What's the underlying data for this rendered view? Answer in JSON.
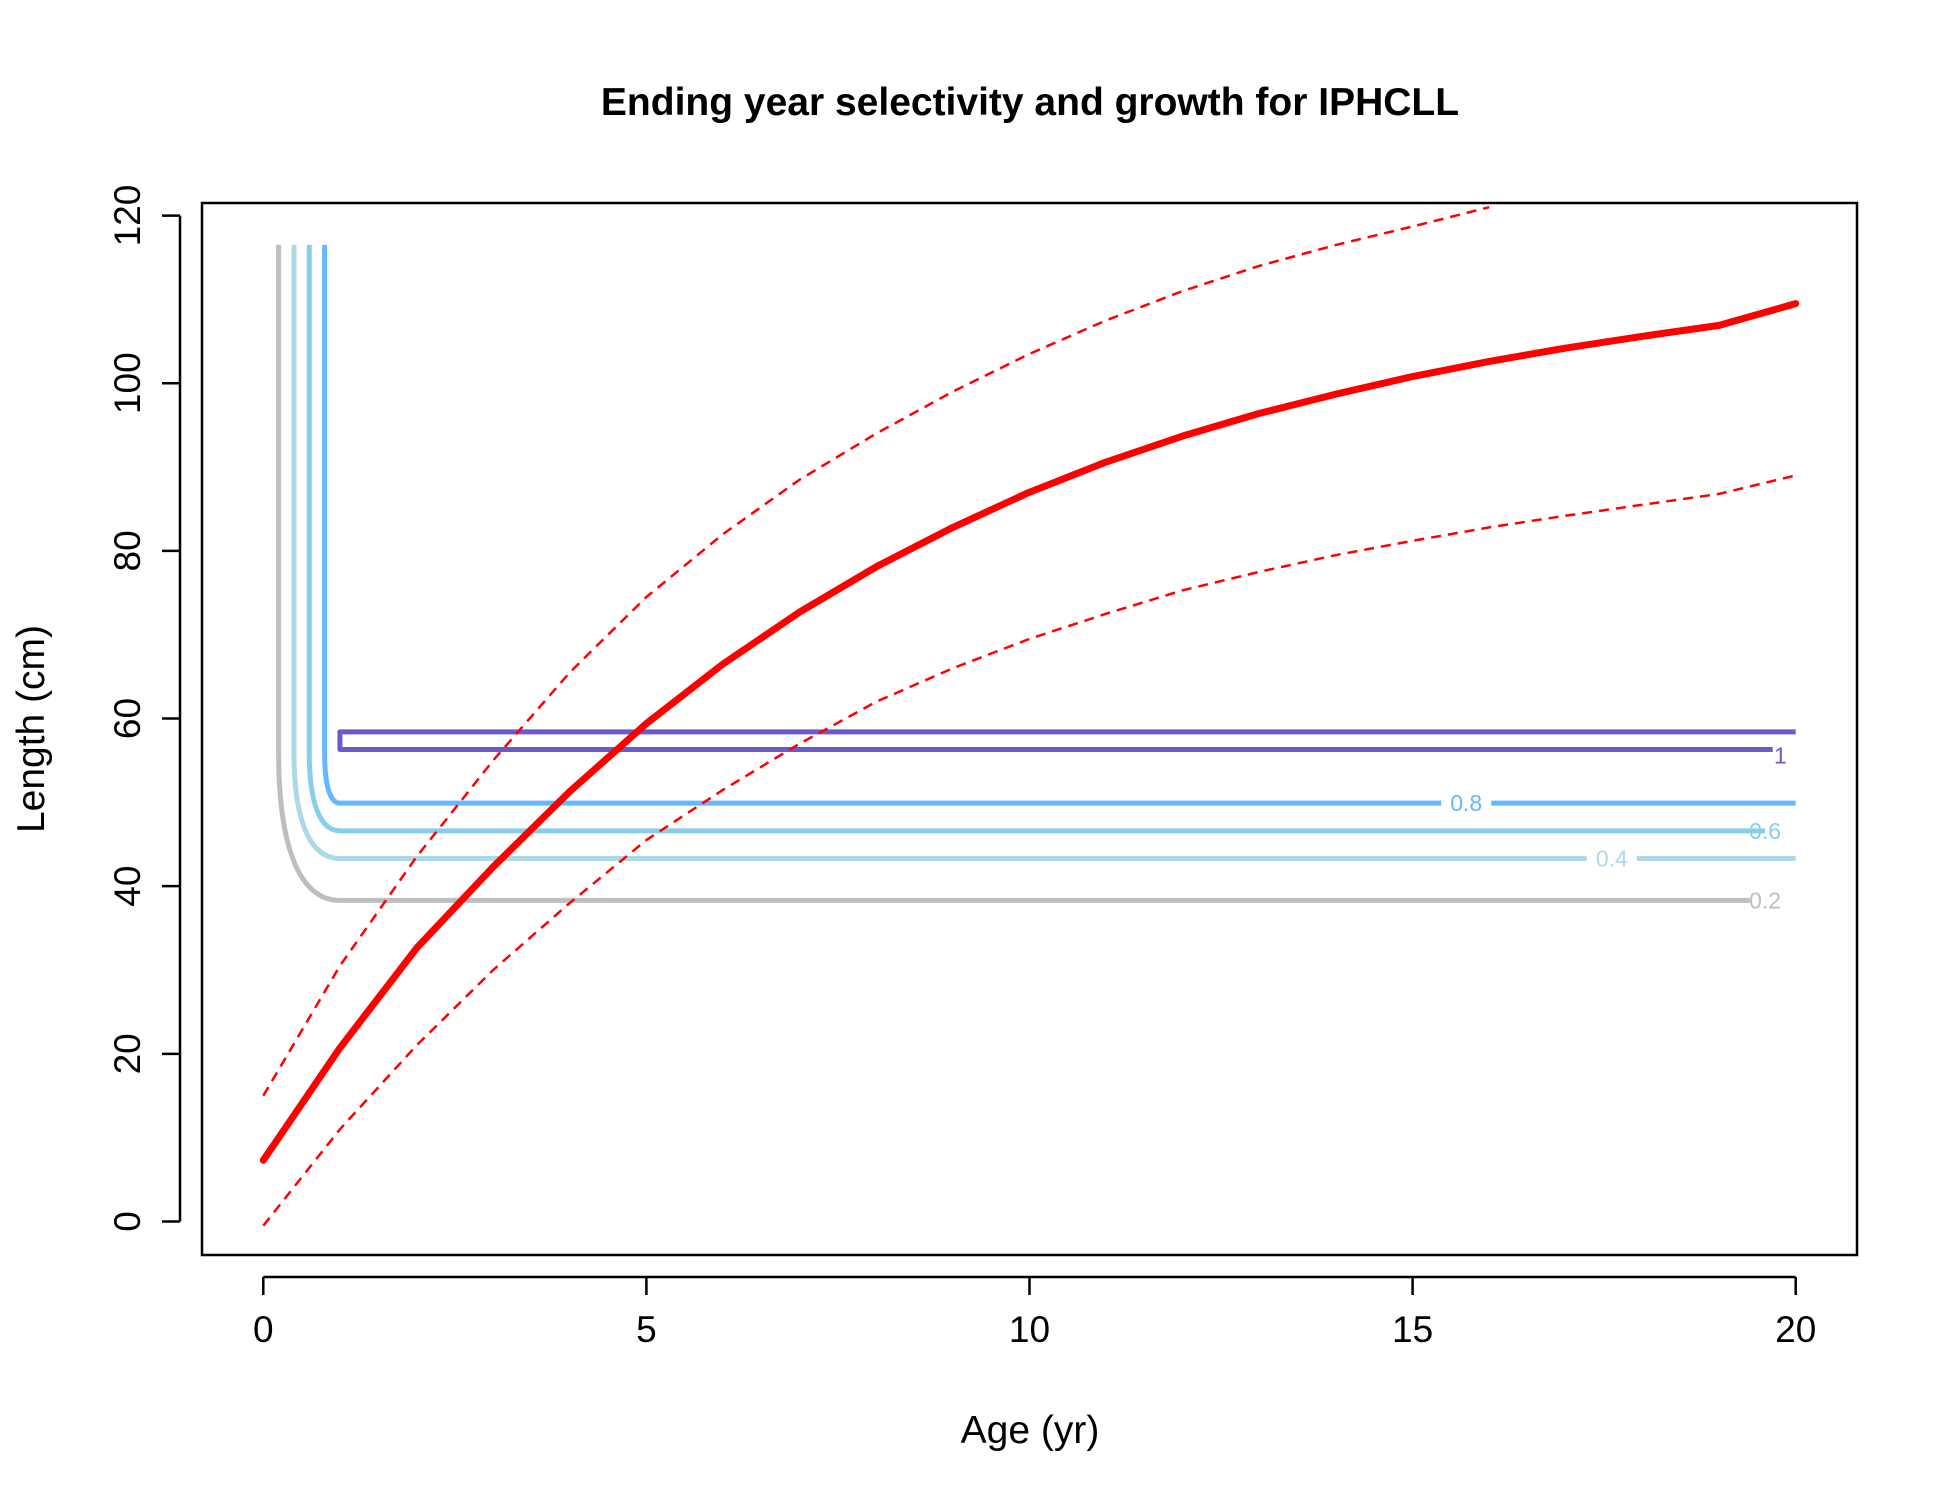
{
  "chart_data": {
    "type": "line",
    "title": "Ending year selectivity and growth for IPHCLL",
    "xlabel": "Age (yr)",
    "ylabel": "Length (cm)",
    "xlim": [
      -0.8,
      20.8
    ],
    "ylim": [
      -4,
      121.5
    ],
    "xticks": [
      0,
      5,
      10,
      15,
      20
    ],
    "yticks": [
      0,
      20,
      40,
      60,
      80,
      100,
      120
    ],
    "growth": {
      "color": "#ff0000",
      "mean": {
        "x": [
          0,
          1,
          2,
          3,
          4,
          5,
          6,
          7,
          8,
          9,
          10,
          11,
          12,
          13,
          14,
          15,
          16,
          17,
          18,
          19,
          20
        ],
        "y": [
          7.3,
          20.7,
          32.6,
          42.3,
          51.3,
          59.4,
          66.5,
          72.7,
          78.1,
          82.8,
          87.0,
          90.6,
          93.7,
          96.4,
          98.7,
          100.8,
          102.6,
          104.2,
          105.6,
          106.9,
          109.5
        ]
      },
      "upper": {
        "x": [
          0,
          1,
          2,
          3,
          4,
          5,
          6,
          7,
          8,
          9,
          10,
          11,
          12,
          13,
          14,
          15,
          16
        ],
        "y": [
          15,
          30.5,
          43.5,
          55,
          65.5,
          74.5,
          82,
          88.5,
          94,
          99,
          103.5,
          107.5,
          111,
          114,
          116.5,
          118.7,
          121
        ]
      },
      "lower": {
        "x": [
          0,
          1,
          2,
          3,
          4,
          5,
          6,
          7,
          8,
          9,
          10,
          11,
          12,
          13,
          14,
          15,
          16,
          17,
          18,
          19,
          20
        ],
        "y": [
          -0.5,
          11,
          21,
          30,
          38,
          45.5,
          51.5,
          57,
          62,
          66,
          69.5,
          72.5,
          75.3,
          77.5,
          79.5,
          81.2,
          82.8,
          84.2,
          85.5,
          86.8,
          89
        ]
      }
    },
    "selectivity_contours": [
      {
        "level": 0.2,
        "label": "0.2",
        "color": "#bebebe",
        "x_start": 0.2,
        "y_top": 116.5,
        "y_bend": 56,
        "y_level": 38.3,
        "x_bend": 1,
        "x_end": 19.4,
        "label_x": 19.6
      },
      {
        "level": 0.4,
        "label": "0.4",
        "color": "#add8e6",
        "x_start": 0.4,
        "y_top": 116.5,
        "y_bend": 56,
        "y_level": 43.3,
        "x_bend": 1,
        "x_end": 20,
        "label_x": 17.6
      },
      {
        "level": 0.6,
        "label": "0.6",
        "color": "#87ceeb",
        "x_start": 0.6,
        "y_top": 116.5,
        "y_bend": 56,
        "y_level": 46.6,
        "x_bend": 1,
        "x_end": 19.6,
        "label_x": 19.6
      },
      {
        "level": 0.8,
        "label": "0.8",
        "color": "#63b8ff",
        "x_start": 0.8,
        "y_top": 116.5,
        "y_bend": 56,
        "y_level": 49.9,
        "x_bend": 1,
        "x_end": 20,
        "label_x": 15.7
      }
    ],
    "contour_one": {
      "level": 1,
      "label": "1",
      "color": "#6a5acd",
      "x_left": 1,
      "x_right_top": 20,
      "x_right_bottom": 19.7,
      "y_top": 58.4,
      "y_bottom": 56.3,
      "label_x": 19.8
    }
  }
}
